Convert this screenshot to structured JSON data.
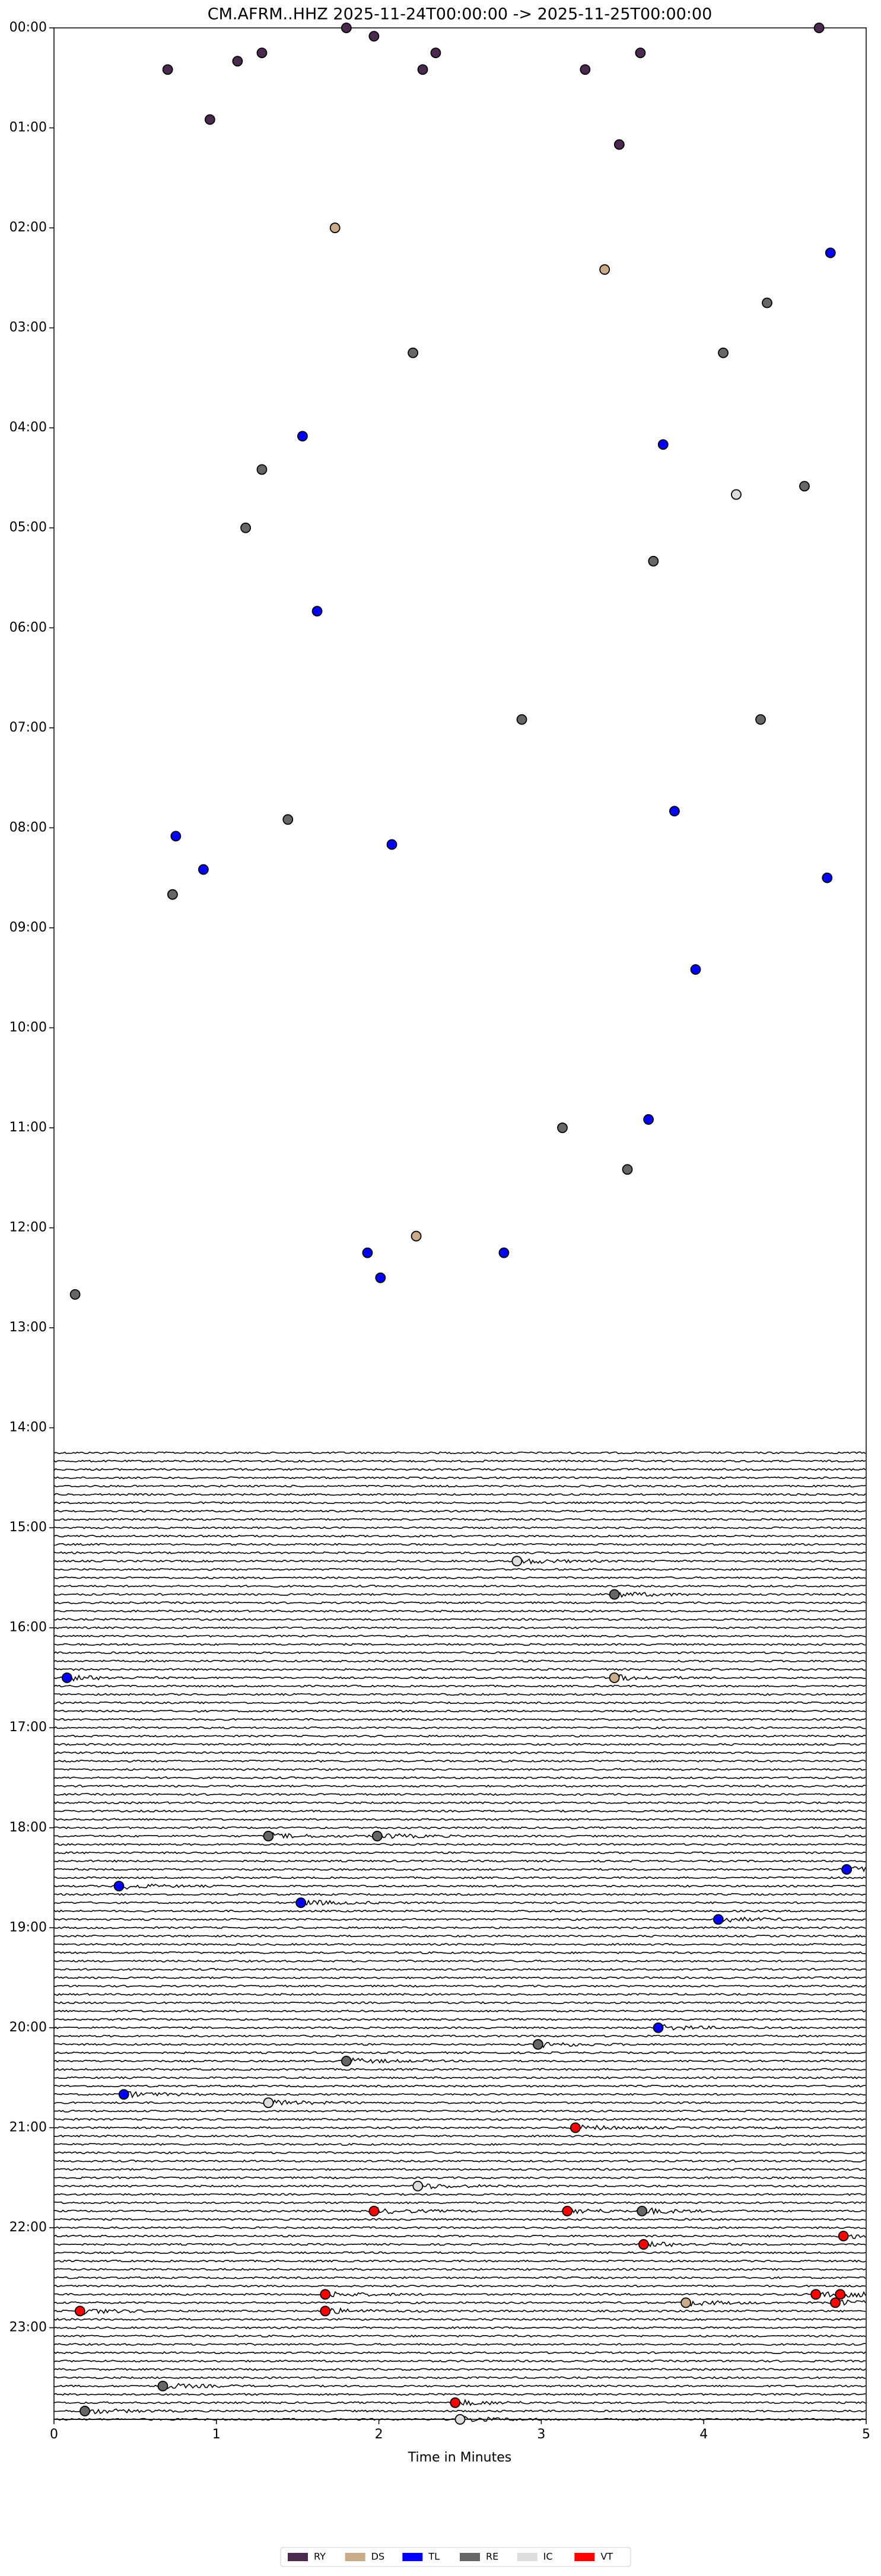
{
  "chart_data": {
    "type": "scatter",
    "title": "CM.AFRM..HHZ  2025-11-24T00:00:00 -> 2025-11-25T00:00:00",
    "x_label": "Time in Minutes",
    "xlim": [
      0,
      5
    ],
    "xticks": [
      0,
      1,
      2,
      3,
      4,
      5
    ],
    "ylim": [
      0,
      1435
    ],
    "y_inverted": true,
    "yticks": [
      {
        "value": 0,
        "label": "00:00"
      },
      {
        "value": 60,
        "label": "01:00"
      },
      {
        "value": 120,
        "label": "02:00"
      },
      {
        "value": 180,
        "label": "03:00"
      },
      {
        "value": 240,
        "label": "04:00"
      },
      {
        "value": 300,
        "label": "05:00"
      },
      {
        "value": 360,
        "label": "06:00"
      },
      {
        "value": 420,
        "label": "07:00"
      },
      {
        "value": 480,
        "label": "08:00"
      },
      {
        "value": 540,
        "label": "09:00"
      },
      {
        "value": 600,
        "label": "10:00"
      },
      {
        "value": 660,
        "label": "11:00"
      },
      {
        "value": 720,
        "label": "12:00"
      },
      {
        "value": 780,
        "label": "13:00"
      },
      {
        "value": 840,
        "label": "14:00"
      },
      {
        "value": 900,
        "label": "15:00"
      },
      {
        "value": 960,
        "label": "16:00"
      },
      {
        "value": 1020,
        "label": "17:00"
      },
      {
        "value": 1080,
        "label": "18:00"
      },
      {
        "value": 1140,
        "label": "19:00"
      },
      {
        "value": 1200,
        "label": "20:00"
      },
      {
        "value": 1260,
        "label": "21:00"
      },
      {
        "value": 1320,
        "label": "22:00"
      },
      {
        "value": 1380,
        "label": "23:00"
      }
    ],
    "series": [
      {
        "name": "RY",
        "color": "#4b2a4f",
        "x": [
          1.8,
          1.97,
          4.71,
          0.7,
          1.13,
          1.28,
          2.27,
          2.35,
          3.27,
          3.61,
          0.96,
          3.48
        ],
        "values": [
          0,
          5,
          0,
          25,
          20,
          15,
          25,
          15,
          25,
          15,
          55,
          70
        ]
      },
      {
        "name": "DS",
        "color": "#c9ab87",
        "x": [
          1.73,
          3.39,
          2.23,
          3.45,
          3.89
        ],
        "values": [
          120,
          145,
          725,
          990,
          1365
        ]
      },
      {
        "name": "TL",
        "color": "#0000ff",
        "x": [
          4.78,
          1.53,
          3.75,
          1.62,
          3.82,
          0.75,
          2.08,
          0.92,
          4.76,
          3.95,
          3.66,
          1.93,
          2.01,
          2.77,
          0.08,
          4.88,
          0.4,
          1.52,
          4.09,
          3.72,
          0.43
        ],
        "values": [
          135,
          245,
          250,
          350,
          470,
          485,
          490,
          505,
          510,
          565,
          655,
          735,
          750,
          735,
          990,
          1105,
          1115,
          1125,
          1135,
          1200,
          1240
        ]
      },
      {
        "name": "RE",
        "color": "#666666",
        "x": [
          4.39,
          2.21,
          4.12,
          1.28,
          4.62,
          1.18,
          3.69,
          2.88,
          4.35,
          1.44,
          0.73,
          3.13,
          3.53,
          0.13,
          3.45,
          1.32,
          1.99,
          2.98,
          1.8,
          3.62,
          0.67,
          0.19
        ],
        "values": [
          165,
          195,
          195,
          265,
          275,
          300,
          320,
          415,
          415,
          475,
          520,
          660,
          685,
          760,
          940,
          1085,
          1085,
          1210,
          1220,
          1310,
          1415,
          1430
        ]
      },
      {
        "name": "IC",
        "color": "#dddddd",
        "x": [
          4.2,
          2.85,
          1.32,
          2.24,
          2.5
        ],
        "values": [
          280,
          920,
          1245,
          1295,
          1435
        ]
      },
      {
        "name": "VT",
        "color": "#ff0000",
        "x": [
          3.21,
          1.97,
          3.16,
          4.86,
          3.63,
          1.67,
          4.69,
          4.84,
          4.81,
          0.16,
          1.67,
          2.47
        ],
        "values": [
          1260,
          1310,
          1310,
          1325,
          1330,
          1360,
          1360,
          1360,
          1365,
          1370,
          1370,
          1425
        ]
      }
    ]
  }
}
